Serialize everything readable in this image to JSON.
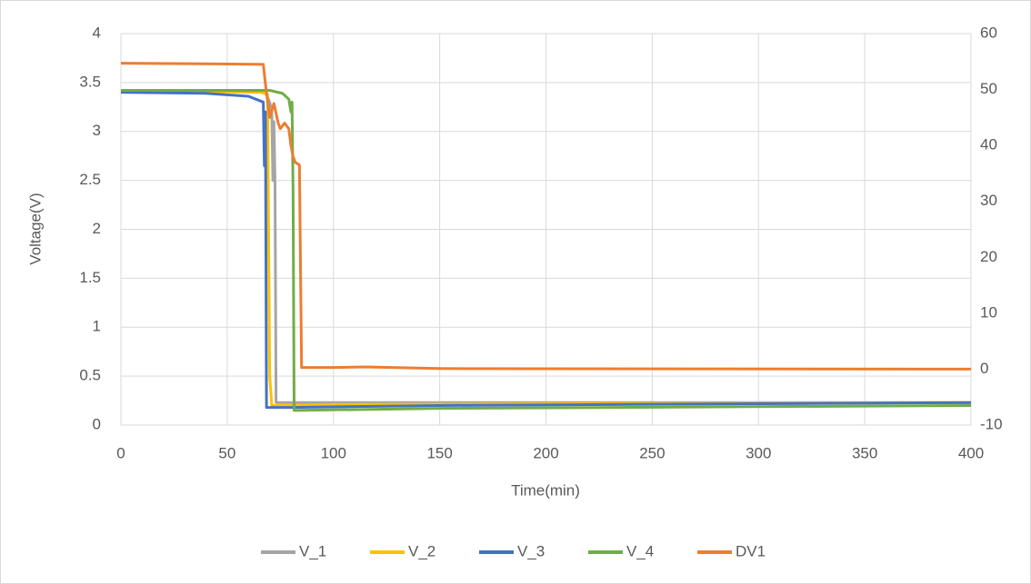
{
  "chart_data": {
    "type": "line",
    "x_label": "Time(min)",
    "y_label": "Voltage(V)",
    "xlim": [
      0,
      400
    ],
    "xticks": [
      0,
      50,
      100,
      150,
      200,
      250,
      300,
      350,
      400
    ],
    "ylim": [
      0,
      4
    ],
    "yticks": [
      0,
      0.5,
      1,
      1.5,
      2,
      2.5,
      3,
      3.5,
      4
    ],
    "y2lim": [
      -10,
      60
    ],
    "y2ticks": [
      -10,
      0,
      10,
      20,
      30,
      40,
      50,
      60
    ],
    "grid": true,
    "legend": "bottom",
    "series": [
      {
        "name": "V_1",
        "color": "#a5a5a5",
        "x": [
          0,
          40,
          68,
          70,
          71,
          71.5,
          72,
          72.5,
          73,
          100,
          400
        ],
        "values": [
          3.41,
          3.41,
          3.4,
          3.3,
          3.2,
          2.5,
          3.1,
          2.5,
          0.23,
          0.23,
          0.23
        ]
      },
      {
        "name": "V_2",
        "color": "#ffc000",
        "x": [
          0,
          40,
          66,
          69,
          70,
          71,
          100,
          400
        ],
        "values": [
          3.41,
          3.41,
          3.4,
          3.38,
          0.5,
          0.2,
          0.21,
          0.23
        ]
      },
      {
        "name": "V_3",
        "color": "#4472c4",
        "x": [
          0,
          40,
          60,
          67,
          67.5,
          68,
          68.5,
          80,
          150,
          400
        ],
        "values": [
          3.4,
          3.39,
          3.36,
          3.3,
          2.65,
          3.2,
          0.18,
          0.18,
          0.2,
          0.23
        ]
      },
      {
        "name": "V_4",
        "color": "#70ad47",
        "x": [
          0,
          70,
          76,
          79,
          80,
          80.5,
          81,
          81.5,
          150,
          400
        ],
        "values": [
          3.42,
          3.42,
          3.39,
          3.33,
          3.2,
          3.3,
          2.4,
          0.15,
          0.17,
          0.2
        ]
      },
      {
        "name": "DV1",
        "color": "#ed7d31",
        "axis": "y2",
        "x": [
          0,
          40,
          67,
          68,
          69,
          70,
          72,
          74,
          75,
          77,
          79,
          80,
          81,
          82,
          84,
          85,
          86,
          100,
          115,
          150,
          400
        ],
        "values": [
          54.7,
          54.6,
          54.5,
          51,
          48,
          45,
          47.5,
          44,
          43,
          44,
          43,
          40,
          38,
          37,
          36.5,
          0.3,
          0.3,
          0.3,
          0.4,
          0.1,
          0
        ]
      }
    ]
  }
}
